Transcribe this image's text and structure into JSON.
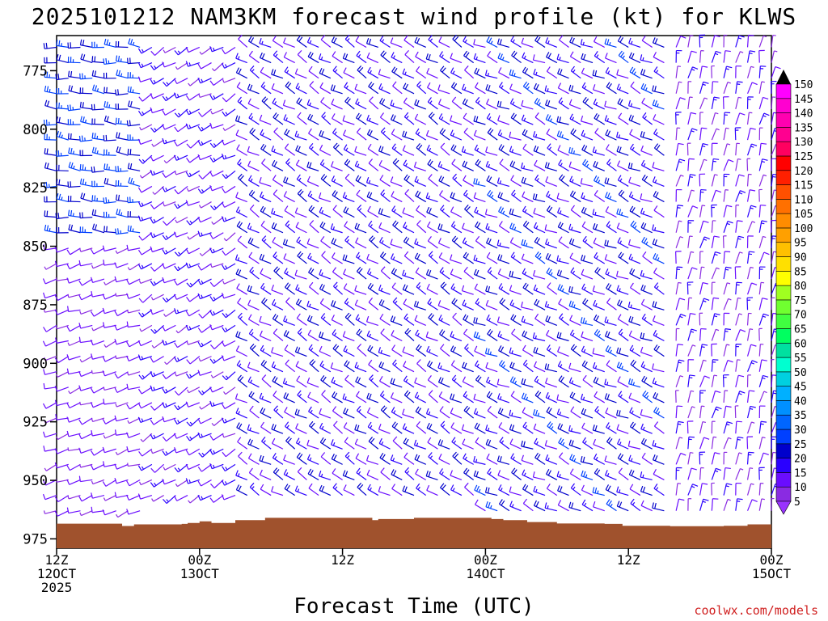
{
  "chart_data": {
    "type": "wind_barb_time_height",
    "title": "2025101212 NAM3KM forecast wind profile (kt) for KLWS",
    "xlabel": "Forecast Time (UTC)",
    "ylabel": "",
    "credit": "coolwx.com/models",
    "y_axis": {
      "inverted": true,
      "range": [
        760,
        979
      ],
      "ticks": [
        775,
        800,
        825,
        850,
        875,
        900,
        925,
        950,
        975
      ]
    },
    "x_axis": {
      "range_hours": [
        0,
        60
      ],
      "ticks": [
        {
          "hour": 0,
          "lines": [
            "12Z",
            "12OCT",
            "2025"
          ]
        },
        {
          "hour": 12,
          "lines": [
            "00Z",
            "13OCT"
          ]
        },
        {
          "hour": 24,
          "lines": [
            "12Z"
          ]
        },
        {
          "hour": 36,
          "lines": [
            "00Z",
            "14OCT"
          ]
        },
        {
          "hour": 48,
          "lines": [
            "12Z"
          ]
        },
        {
          "hour": 60,
          "lines": [
            "00Z",
            "15OCT"
          ]
        }
      ]
    },
    "colorbar": {
      "levels": [
        5,
        10,
        15,
        20,
        25,
        30,
        35,
        40,
        45,
        50,
        55,
        60,
        65,
        70,
        75,
        80,
        85,
        90,
        95,
        100,
        105,
        110,
        115,
        120,
        125,
        130,
        135,
        140,
        145,
        150
      ],
      "colors": [
        "#8a2be2",
        "#6a0dff",
        "#2a00ff",
        "#0000cc",
        "#0040ff",
        "#0066ff",
        "#0090ff",
        "#00b0ff",
        "#00d0e0",
        "#00ffd0",
        "#00e0a0",
        "#00ff60",
        "#40ff40",
        "#70ff30",
        "#a0ff20",
        "#ffff00",
        "#ffe000",
        "#ffc000",
        "#ffa000",
        "#ff8c00",
        "#ff7000",
        "#ff5000",
        "#ff2000",
        "#ff0000",
        "#ff0060",
        "#ff0090",
        "#ff00b0",
        "#ff00d0",
        "#ff00ff"
      ],
      "min_arrow_color": "#9933ff",
      "max_arrow_color": "#000000"
    },
    "terrain": {
      "color": "#a0522d",
      "surface_pressure_by_hour": [
        [
          0,
          968.5
        ],
        [
          4,
          968.5
        ],
        [
          5.5,
          969.5
        ],
        [
          6.5,
          968.8
        ],
        [
          10.5,
          968.6
        ],
        [
          11,
          968.2
        ],
        [
          12,
          967.5
        ],
        [
          13,
          968.2
        ],
        [
          15,
          967
        ],
        [
          17.5,
          966
        ],
        [
          25,
          966
        ],
        [
          26.5,
          967
        ],
        [
          27,
          966.5
        ],
        [
          30,
          966
        ],
        [
          36.5,
          966.5
        ],
        [
          37.5,
          967
        ],
        [
          39.5,
          967.8
        ],
        [
          42,
          968.4
        ],
        [
          46,
          968.6
        ],
        [
          47.5,
          969.4
        ],
        [
          51.5,
          969.6
        ],
        [
          56,
          969.4
        ],
        [
          58,
          968.8
        ],
        [
          60,
          968.6
        ]
      ]
    },
    "series": [
      {
        "name": "wind",
        "units": "kt",
        "regimes": [
          {
            "hours": [
              0,
              8
            ],
            "levels": [
              760,
              850
            ],
            "dir_deg": 275,
            "speed_kt": [
              20,
              30
            ]
          },
          {
            "hours": [
              0,
              8
            ],
            "levels": [
              850,
              965
            ],
            "dir_deg": 250,
            "speed_kt": [
              8,
              15
            ]
          },
          {
            "hours": [
              8,
              16
            ],
            "levels": [
              760,
              960
            ],
            "dir_deg": 240,
            "speed_kt": [
              8,
              20
            ]
          },
          {
            "hours": [
              16,
              36
            ],
            "levels": [
              760,
              960
            ],
            "dir_deg": 300,
            "speed_kt": [
              10,
              25
            ]
          },
          {
            "hours": [
              36,
              52
            ],
            "levels": [
              760,
              965
            ],
            "dir_deg": 295,
            "speed_kt": [
              10,
              28
            ]
          },
          {
            "hours": [
              52,
              60
            ],
            "levels": [
              760,
              965
            ],
            "dir_deg": 10,
            "speed_kt": [
              5,
              20
            ]
          }
        ]
      }
    ]
  }
}
